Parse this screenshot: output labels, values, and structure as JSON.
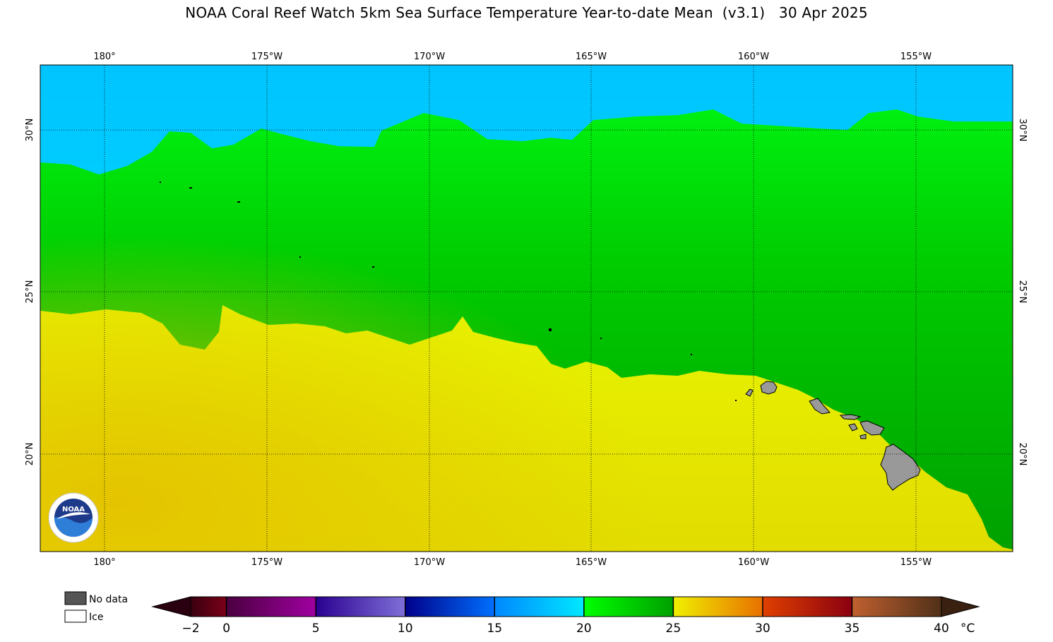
{
  "title": "NOAA Coral Reef Watch 5km Sea Surface Temperature Year-to-date Mean  (v3.1)   30 Apr 2025",
  "map": {
    "lon_labels": [
      "180°",
      "175°W",
      "170°W",
      "165°W",
      "160°W",
      "155°W"
    ],
    "lat_labels": [
      "30°N",
      "25°N",
      "20°N"
    ],
    "colors": {
      "cyan_water": "#00e8ff",
      "light_blue_water": "#00c4ff",
      "bright_green": "#00f010",
      "mid_green": "#00c400",
      "dark_green": "#00a000",
      "yellow": "#e8f800",
      "yellow_orange": "#e6d400",
      "land": "#999999"
    }
  },
  "legend": {
    "no_data_label": "No data",
    "ice_label": "Ice",
    "no_data_color": "#555555",
    "ice_color": "#ffffff"
  },
  "colorbar": {
    "tick_labels": [
      "−2",
      "0",
      "5",
      "10",
      "15",
      "20",
      "25",
      "30",
      "35",
      "40"
    ],
    "unit": "°C",
    "segments": [
      {
        "from": "#3a0010",
        "to": "#7a0018"
      },
      {
        "from": "#4a0040",
        "to": "#a000a0"
      },
      {
        "from": "#2a0090",
        "to": "#8070d8"
      },
      {
        "from": "#00008a",
        "to": "#0070ff"
      },
      {
        "from": "#0088ff",
        "to": "#00e8ff"
      },
      {
        "from": "#00ff00",
        "to": "#00a000"
      },
      {
        "from": "#f0f000",
        "to": "#e87000"
      },
      {
        "from": "#e04000",
        "to": "#8a0010"
      },
      {
        "from": "#c06030",
        "to": "#503018"
      }
    ],
    "left_arrow_color": "#2a0010",
    "right_arrow_color": "#3a2010"
  },
  "logo": {
    "text": "NOAA"
  }
}
